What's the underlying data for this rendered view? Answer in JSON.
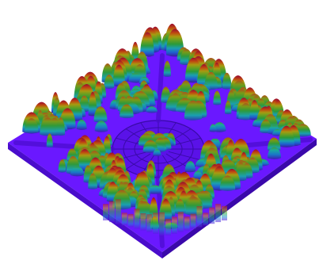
{
  "scene": {
    "description_colors": {
      "background": "#ffffff",
      "ground": "#6a18ff",
      "ground_dark": "#4a0ccc",
      "ramp": [
        "#3b1aa0",
        "#1f5fd0",
        "#1aa0b0",
        "#2a9a3a",
        "#5aa020",
        "#9a9a10",
        "#c04a10",
        "#b01030",
        "#8a0a3a"
      ]
    }
  }
}
